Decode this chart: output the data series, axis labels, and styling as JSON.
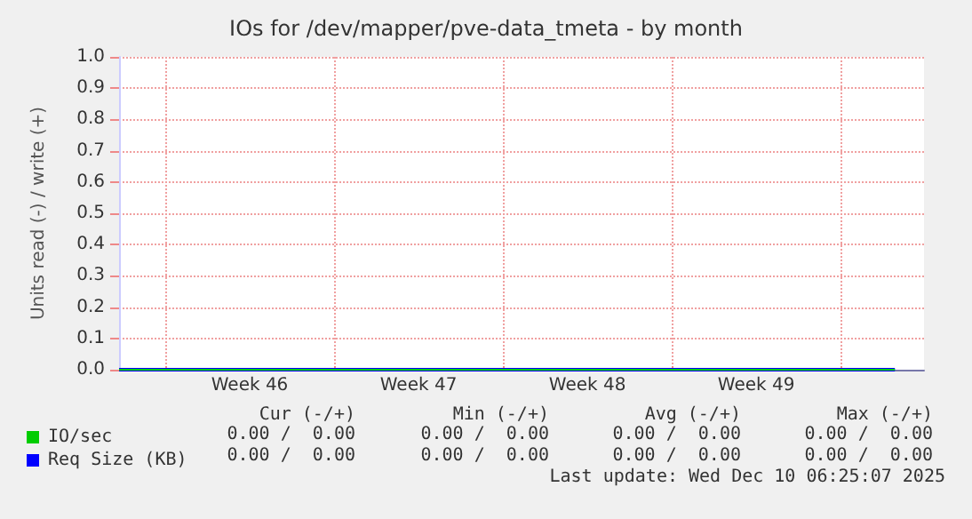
{
  "chart_data": {
    "type": "line",
    "title": "IOs for /dev/mapper/pve-data_tmeta - by month",
    "ylabel": "Units read (-) / write (+)",
    "x": [
      "2025-11-08T02:00",
      "2025-12-10T06:00"
    ],
    "series": [
      {
        "name": "IO/sec",
        "color": "#00cc00",
        "values": [
          0,
          0
        ]
      },
      {
        "name": "Req Size (KB)",
        "color": "#0000ff",
        "values": [
          0,
          0
        ]
      }
    ],
    "xlim": [
      "2025-11-08T02:00",
      "2025-12-11T11:00"
    ],
    "xticks": [
      {
        "value": "2025-11-10",
        "label": null
      },
      {
        "value": "2025-11-13T12:00",
        "label": "Week 46"
      },
      {
        "value": "2025-11-17",
        "label": null
      },
      {
        "value": "2025-11-20T12:00",
        "label": "Week 47"
      },
      {
        "value": "2025-11-24",
        "label": null
      },
      {
        "value": "2025-11-27T12:00",
        "label": "Week 48"
      },
      {
        "value": "2025-12-01",
        "label": null
      },
      {
        "value": "2025-12-04T12:00",
        "label": "Week 49"
      },
      {
        "value": "2025-12-08",
        "label": null
      }
    ],
    "ylim": [
      0,
      1
    ],
    "yticks": [
      {
        "value": 0,
        "label": "0.0"
      },
      {
        "value": 0.1,
        "label": "0.1"
      },
      {
        "value": 0.2,
        "label": "0.2"
      },
      {
        "value": 0.3,
        "label": "0.3"
      },
      {
        "value": 0.4,
        "label": "0.4"
      },
      {
        "value": 0.5,
        "label": "0.5"
      },
      {
        "value": 0.6,
        "label": "0.6"
      },
      {
        "value": 0.7,
        "label": "0.7"
      },
      {
        "value": 0.8,
        "label": "0.8"
      },
      {
        "value": 0.9,
        "label": "0.9"
      },
      {
        "value": 1,
        "label": "1.0"
      }
    ],
    "grid": true,
    "legend": "bottom left",
    "marker": "none",
    "line_style": "solid",
    "annotations": [
      "Cur (-/+)",
      "Min (-/+)",
      "Avg (-/+)",
      "Max (-/+)",
      "0.00 /  0.00",
      "0.00 /  0.00",
      "0.00 /  0.00",
      "0.00 /  0.00",
      "0.00 /  0.00",
      "0.00 /  0.00",
      "0.00 /  0.00",
      "0.00 /  0.00",
      "Last update: Wed Dec 10 06:25:07 2025"
    ]
  }
}
